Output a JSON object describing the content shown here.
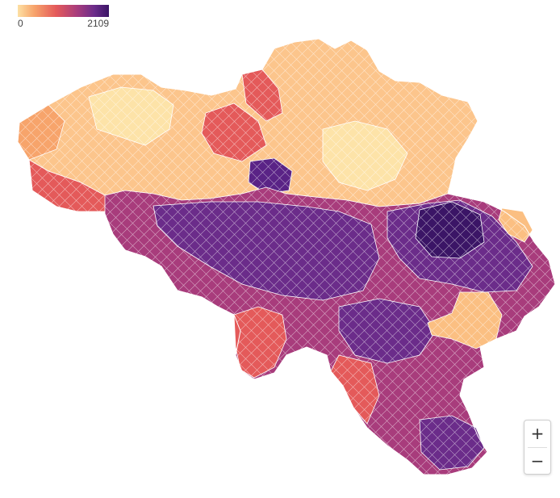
{
  "legend": {
    "min_label": "0",
    "max_label": "2109",
    "colors": [
      "#fde0a4",
      "#f7a46b",
      "#e45a5a",
      "#a83c7c",
      "#6b2c8a",
      "#3b1566"
    ]
  },
  "zoom": {
    "in_label": "+",
    "out_label": "−"
  },
  "map": {
    "region_colors": {
      "north": "#fcc58c",
      "north_light": "#fde3a8",
      "west_coast": "#f7a46b",
      "transition": "#e45a5a",
      "brussels": "#5a2386",
      "south_mid": "#a83c7c",
      "south_dark": "#6b2c8a",
      "east_dark": "#3b1566",
      "east_light": "#fbbf82"
    },
    "border_color": "#ffffff"
  }
}
